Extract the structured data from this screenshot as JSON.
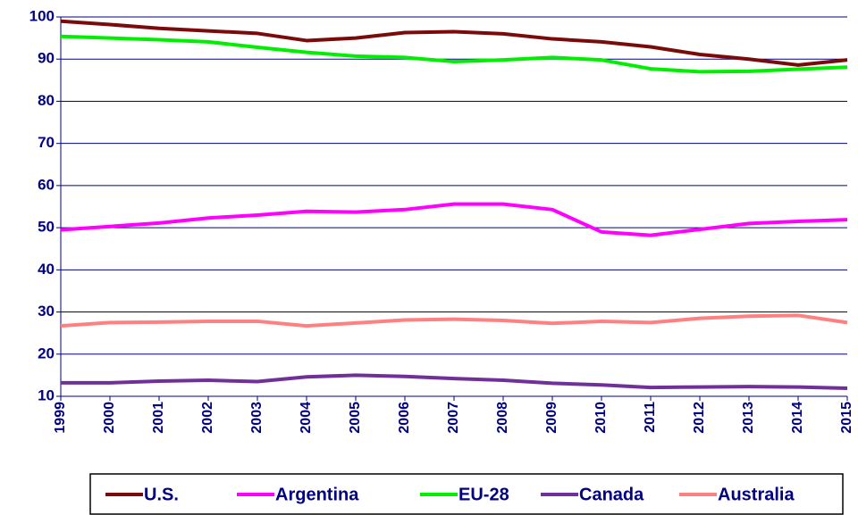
{
  "chart_data": {
    "type": "line",
    "categories": [
      "1999",
      "2000",
      "2001",
      "2002",
      "2003",
      "2004",
      "2005",
      "2006",
      "2007",
      "2008",
      "2009",
      "2010",
      "2011",
      "2012",
      "2013",
      "2014",
      "2015"
    ],
    "series": [
      {
        "name": "U.S.",
        "color": "#7b0a0a",
        "values": [
          99.0,
          98.2,
          97.3,
          96.7,
          96.1,
          94.4,
          95.0,
          96.3,
          96.5,
          96.0,
          94.8,
          94.1,
          92.9,
          91.1,
          90.0,
          88.6,
          89.8
        ]
      },
      {
        "name": "Argentina",
        "color": "#ff00ff",
        "values": [
          49.5,
          50.3,
          51.1,
          52.3,
          53.0,
          53.9,
          53.7,
          54.3,
          55.6,
          55.6,
          54.3,
          49.0,
          48.2,
          49.6,
          51.0,
          51.5,
          51.9
        ]
      },
      {
        "name": "EU-28",
        "color": "#00ee00",
        "values": [
          95.4,
          95.0,
          94.6,
          94.1,
          92.8,
          91.6,
          90.7,
          90.4,
          89.4,
          89.8,
          90.4,
          89.8,
          87.7,
          87.0,
          87.1,
          87.6,
          88.1
        ]
      },
      {
        "name": "Canada",
        "color": "#6f3199",
        "values": [
          13.2,
          13.2,
          13.6,
          13.8,
          13.5,
          14.6,
          15.0,
          14.7,
          14.2,
          13.8,
          13.1,
          12.7,
          12.1,
          12.2,
          12.3,
          12.2,
          11.9
        ]
      },
      {
        "name": "Australia",
        "color": "#ff8080",
        "values": [
          26.7,
          27.5,
          27.6,
          27.8,
          27.8,
          26.7,
          27.4,
          28.1,
          28.3,
          28.0,
          27.3,
          27.8,
          27.5,
          28.5,
          29.0,
          29.2,
          27.5
        ]
      }
    ],
    "ylim": [
      10,
      100
    ],
    "yticks": [
      10,
      20,
      30,
      40,
      50,
      60,
      70,
      80,
      90,
      100
    ],
    "grid": true,
    "legend": "bottom"
  }
}
